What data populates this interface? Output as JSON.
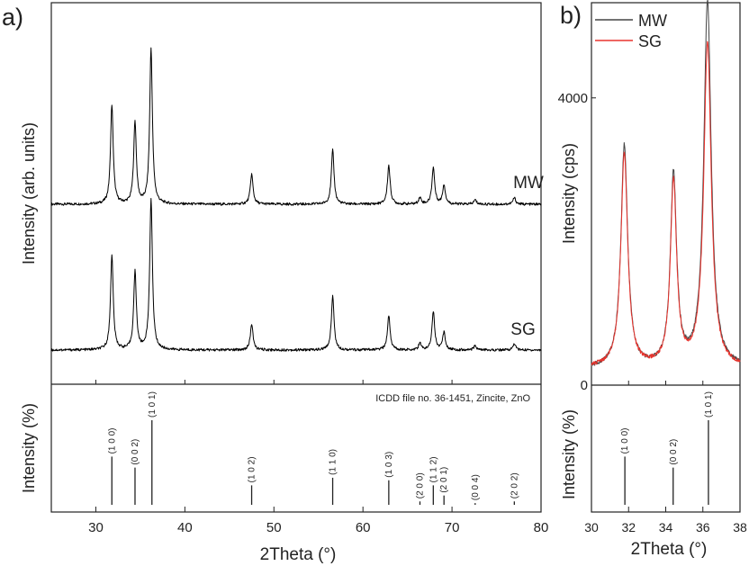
{
  "chart_data": [
    {
      "panel": "a",
      "panel_label": "a)",
      "type": "line",
      "title": "",
      "xlabel": "2Theta (°)",
      "xlim": [
        25,
        80
      ],
      "xticks": [
        30,
        40,
        50,
        60,
        70,
        80
      ],
      "top_plot": {
        "ylabel": "Intensity (arb. units)",
        "yticks_shown": false,
        "series": [
          {
            "name": "MW",
            "color": "#000000",
            "baseline": 0.05,
            "peaks": [
              {
                "x": 31.8,
                "h": 0.46
              },
              {
                "x": 34.4,
                "h": 0.38
              },
              {
                "x": 36.2,
                "h": 0.72
              },
              {
                "x": 47.5,
                "h": 0.14
              },
              {
                "x": 56.6,
                "h": 0.25
              },
              {
                "x": 62.9,
                "h": 0.18
              },
              {
                "x": 66.4,
                "h": 0.03
              },
              {
                "x": 67.9,
                "h": 0.17
              },
              {
                "x": 69.1,
                "h": 0.09
              },
              {
                "x": 72.6,
                "h": 0.02
              },
              {
                "x": 77.0,
                "h": 0.03
              }
            ]
          },
          {
            "name": "SG",
            "color": "#000000",
            "baseline": 0.05,
            "peaks": [
              {
                "x": 31.8,
                "h": 0.44
              },
              {
                "x": 34.4,
                "h": 0.36
              },
              {
                "x": 36.2,
                "h": 0.7
              },
              {
                "x": 47.5,
                "h": 0.12
              },
              {
                "x": 56.6,
                "h": 0.25
              },
              {
                "x": 62.9,
                "h": 0.16
              },
              {
                "x": 66.4,
                "h": 0.03
              },
              {
                "x": 67.9,
                "h": 0.18
              },
              {
                "x": 69.1,
                "h": 0.08
              },
              {
                "x": 72.6,
                "h": 0.02
              },
              {
                "x": 77.0,
                "h": 0.03
              }
            ]
          }
        ]
      },
      "reference": {
        "ylabel": "Intensity (%)",
        "caption": "ICDD file no. 36-1451, Zincite, ZnO",
        "lines": [
          {
            "x": 31.8,
            "intensity": 57,
            "hkl": "(1 0 0)"
          },
          {
            "x": 34.4,
            "intensity": 44,
            "hkl": "(0 0 2)"
          },
          {
            "x": 36.3,
            "intensity": 100,
            "hkl": "(1 0 1)"
          },
          {
            "x": 47.5,
            "intensity": 23,
            "hkl": "(1 0 2)"
          },
          {
            "x": 56.6,
            "intensity": 32,
            "hkl": "(1 1 0)"
          },
          {
            "x": 62.9,
            "intensity": 29,
            "hkl": "(1 0 3)"
          },
          {
            "x": 66.4,
            "intensity": 4,
            "hkl": "(2 0 0)"
          },
          {
            "x": 67.9,
            "intensity": 23,
            "hkl": "(1 1 2)"
          },
          {
            "x": 69.1,
            "intensity": 11,
            "hkl": "(2 0 1)"
          },
          {
            "x": 72.6,
            "intensity": 2,
            "hkl": "(0 0 4)"
          },
          {
            "x": 77.0,
            "intensity": 4,
            "hkl": "(2 0 2)"
          }
        ]
      }
    },
    {
      "panel": "b",
      "panel_label": "b)",
      "type": "line",
      "title": "",
      "xlabel": "2Theta (°)",
      "xlim": [
        30,
        38
      ],
      "xticks": [
        30,
        32,
        34,
        36,
        38
      ],
      "top_plot": {
        "ylabel": "Intensity (cps)",
        "ylim": [
          0,
          5200
        ],
        "yticks": [
          0,
          4000
        ],
        "legend": "top-left",
        "series": [
          {
            "name": "MW",
            "color": "#444444",
            "baseline": 230,
            "peaks": [
              {
                "x": 31.77,
                "h": 3100,
                "w": 0.22
              },
              {
                "x": 34.42,
                "h": 2680,
                "w": 0.2
              },
              {
                "x": 36.25,
                "h": 5100,
                "w": 0.24
              }
            ]
          },
          {
            "name": "SG",
            "color": "#e8342e",
            "baseline": 240,
            "peaks": [
              {
                "x": 31.77,
                "h": 2960,
                "w": 0.22
              },
              {
                "x": 34.42,
                "h": 2550,
                "w": 0.2
              },
              {
                "x": 36.25,
                "h": 4520,
                "w": 0.24
              }
            ]
          }
        ]
      },
      "reference": {
        "ylabel": "Intensity (%)",
        "lines": [
          {
            "x": 31.8,
            "intensity": 57,
            "hkl": "(1 0 0)"
          },
          {
            "x": 34.4,
            "intensity": 44,
            "hkl": "(0 0 2)"
          },
          {
            "x": 36.3,
            "intensity": 100,
            "hkl": "(1 0 1)"
          }
        ]
      }
    }
  ]
}
